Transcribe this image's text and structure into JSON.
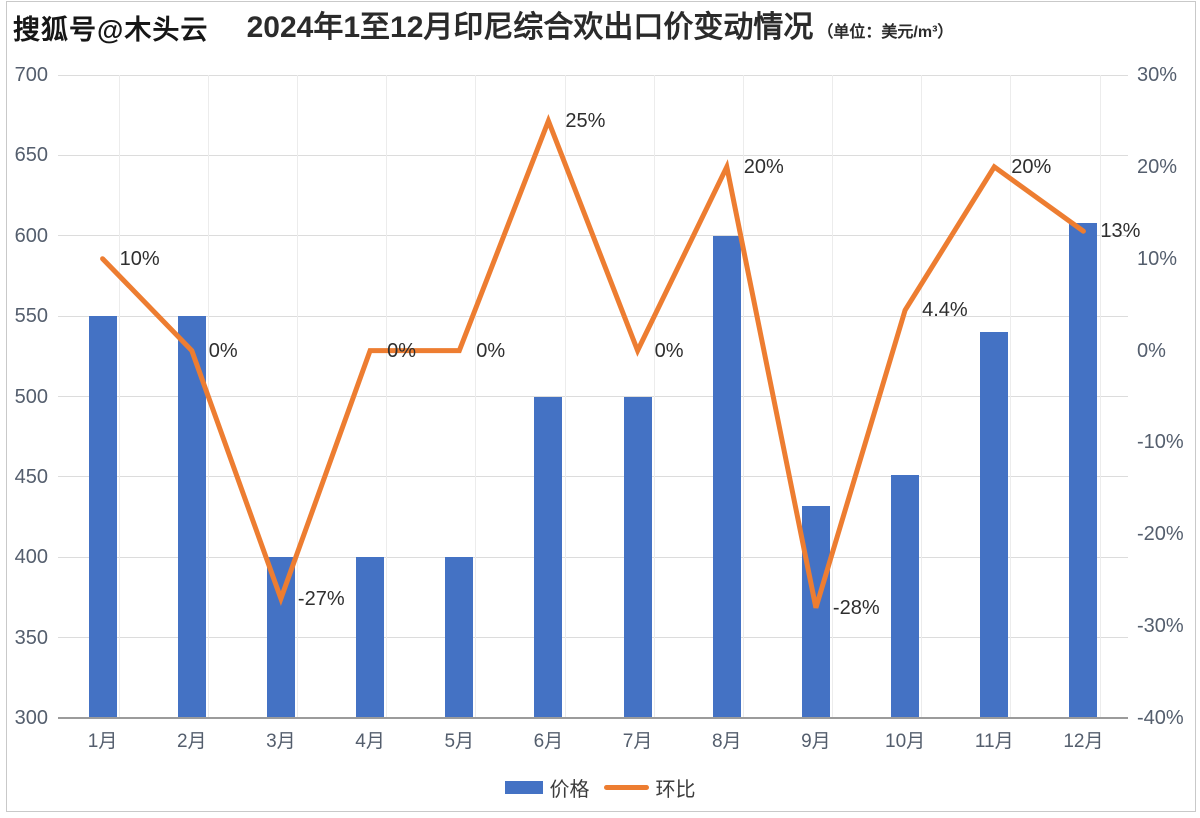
{
  "watermark": "搜狐号@木头云",
  "title": {
    "main": "2024年1至12月印尼综合欢出口价变动情况",
    "unit": "（单位：美元/m³）"
  },
  "legend": [
    {
      "label": "价格",
      "type": "bar",
      "color": "#4472C4"
    },
    {
      "label": "环比",
      "type": "line",
      "color": "#ED7D31"
    }
  ],
  "chart_data": {
    "type": "bar+line",
    "title": "2024年1至12月印尼综合欢出口价变动情况",
    "unit": "美元/m³",
    "categories": [
      "1月",
      "2月",
      "3月",
      "4月",
      "5月",
      "6月",
      "7月",
      "8月",
      "9月",
      "10月",
      "11月",
      "12月"
    ],
    "series": [
      {
        "name": "价格",
        "type": "bar",
        "axis": "left",
        "color": "#4472C4",
        "values": [
          550,
          550,
          400,
          400,
          400,
          500,
          500,
          600,
          432,
          451,
          540,
          608
        ]
      },
      {
        "name": "环比",
        "type": "line",
        "axis": "right",
        "color": "#ED7D31",
        "values": [
          10,
          0,
          -27,
          0,
          0,
          25,
          0,
          20,
          -28,
          4.4,
          20,
          13
        ],
        "labels": [
          "10%",
          "0%",
          "-27%",
          "0%",
          "0%",
          "25%",
          "0%",
          "20%",
          "-28%",
          "4.4%",
          "20%",
          "13%"
        ]
      }
    ],
    "left_axis": {
      "min": 300,
      "max": 700,
      "step": 50,
      "ticks": [
        "700",
        "650",
        "600",
        "550",
        "500",
        "450",
        "400",
        "350",
        "300"
      ]
    },
    "right_axis": {
      "min": -40,
      "max": 30,
      "step": 10,
      "ticks": [
        "30%",
        "20%",
        "10%",
        "0%",
        "-10%",
        "-20%",
        "-30%",
        "-40%"
      ]
    },
    "grid": true,
    "legend_position": "bottom"
  }
}
